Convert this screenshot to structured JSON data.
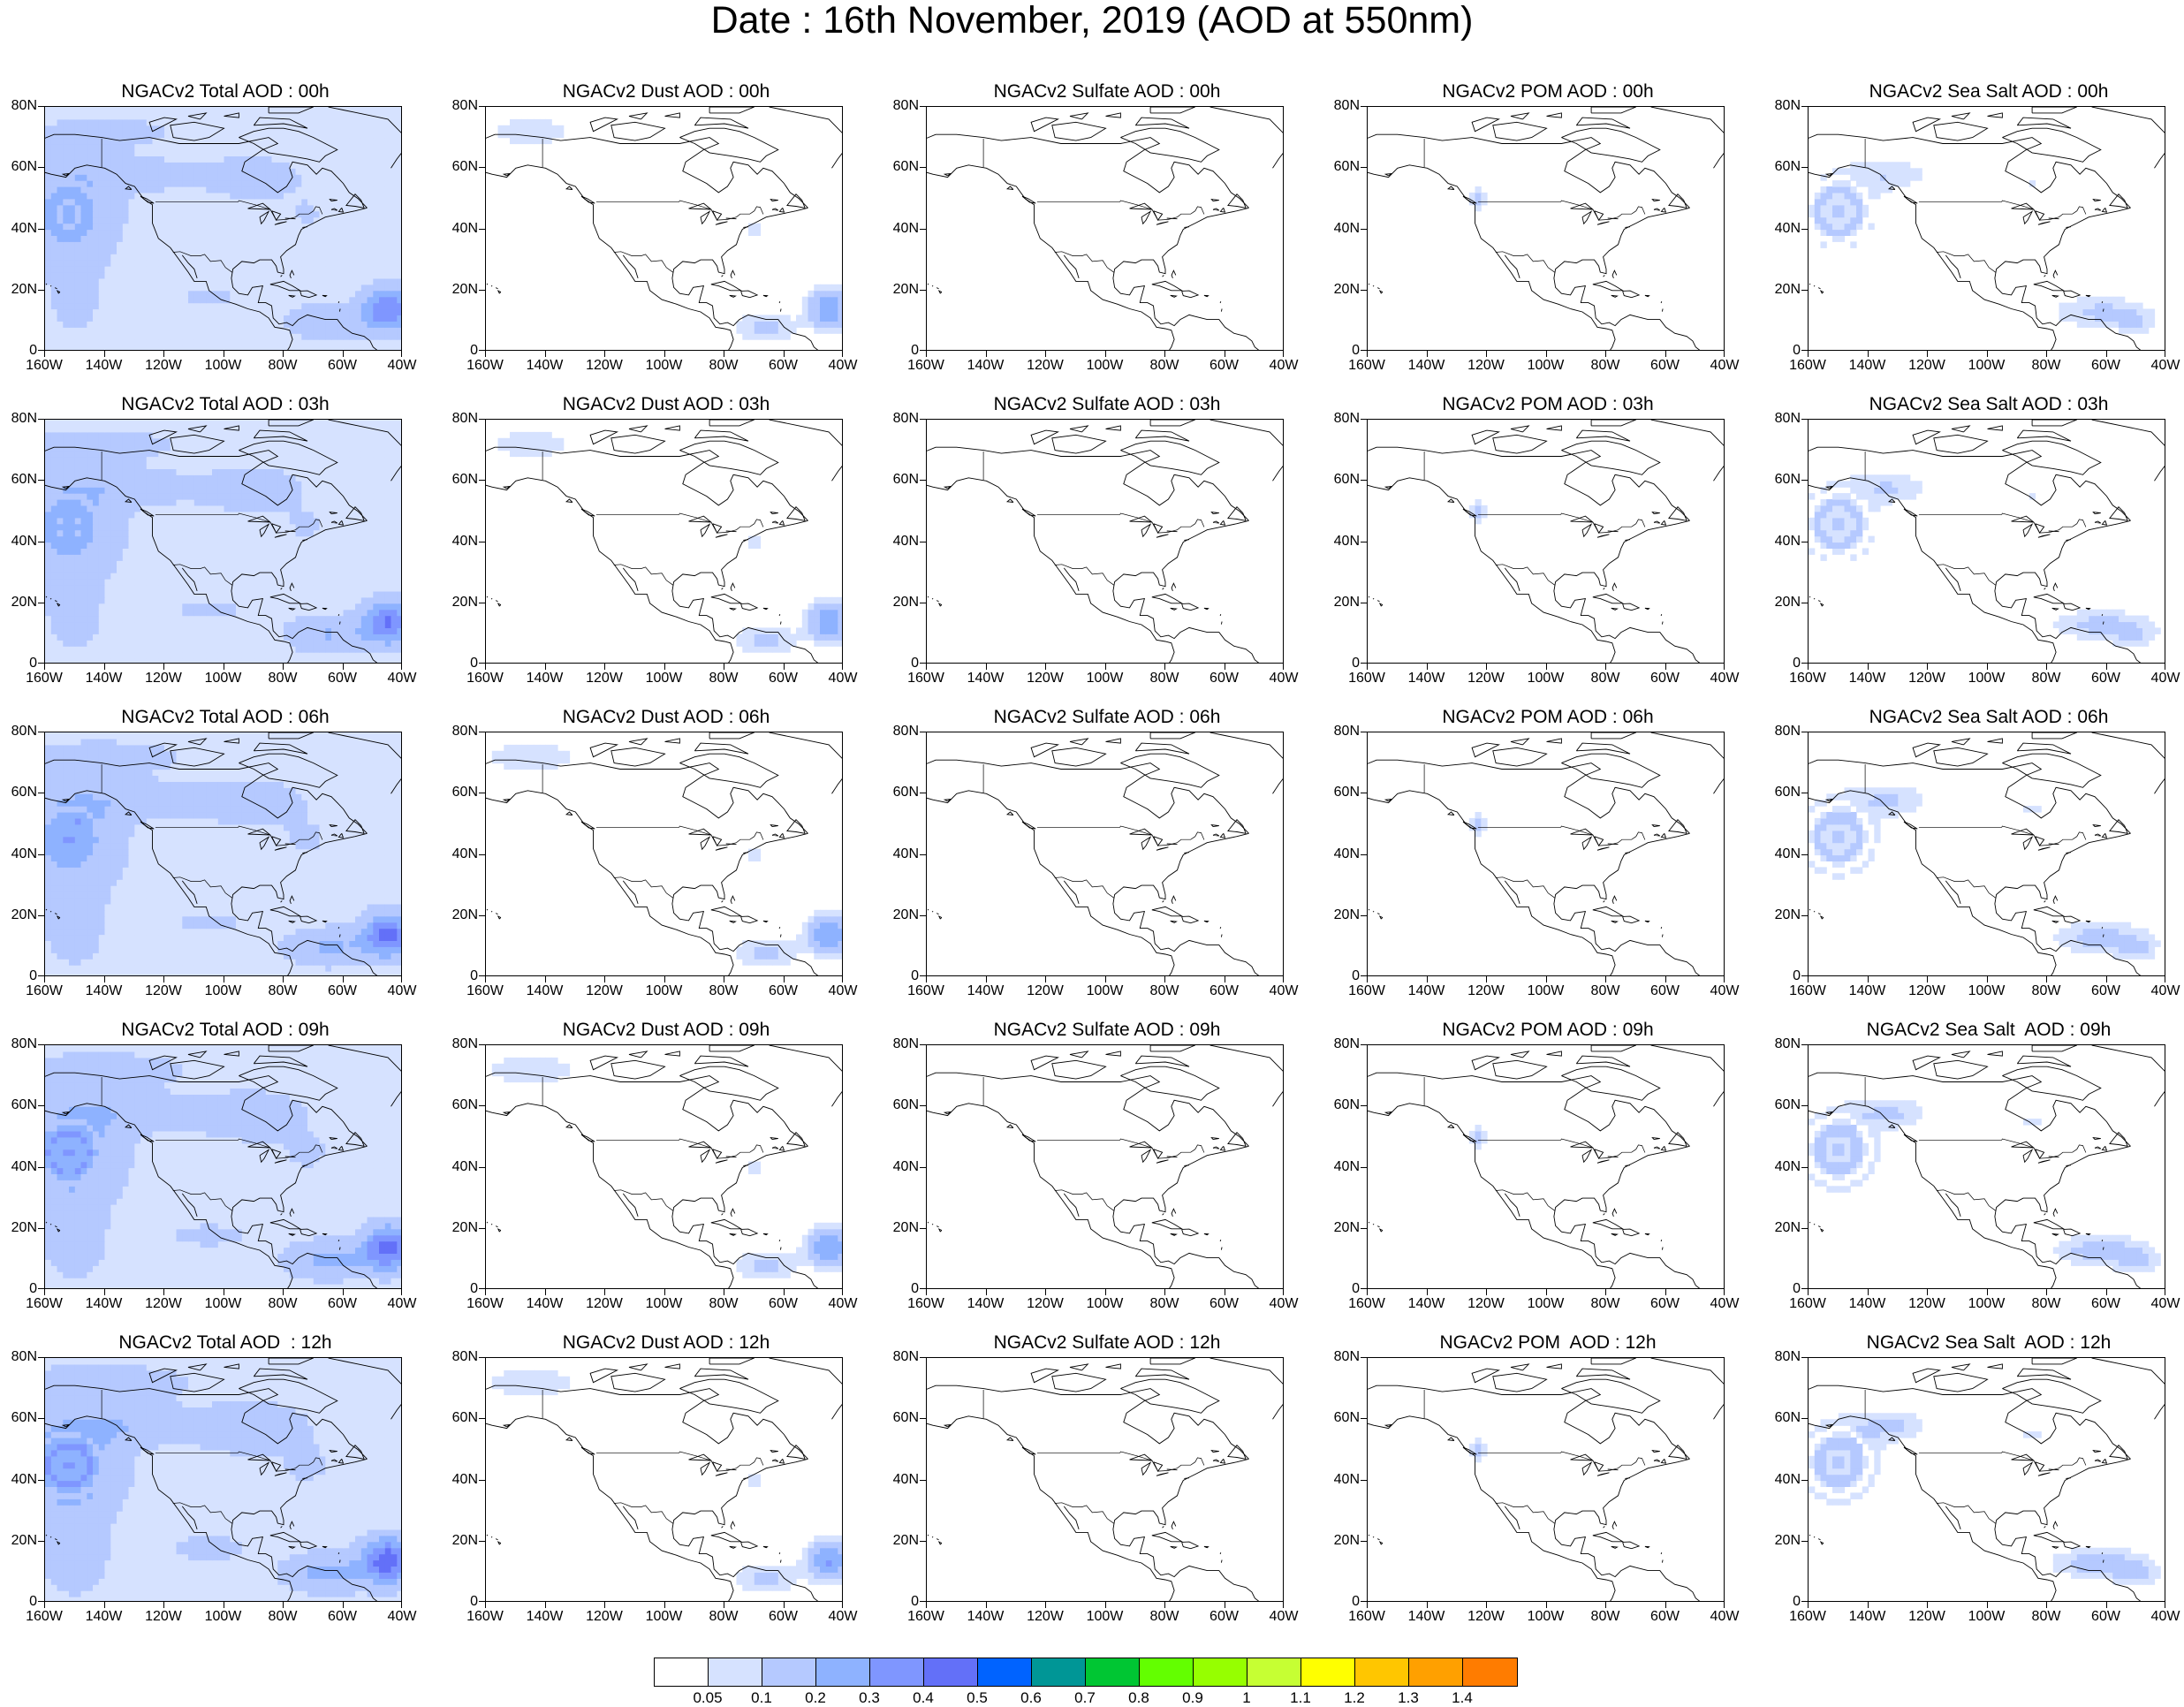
{
  "title": "Date : 16th November, 2019 (AOD at 550nm)",
  "lat_labels": [
    "80N",
    "60N",
    "40N",
    "20N",
    "0"
  ],
  "lon_labels": [
    "160W",
    "140W",
    "120W",
    "100W",
    "80W",
    "60W",
    "40W"
  ],
  "panels": [
    [
      {
        "title": "NGACv2 Total AOD : 00h",
        "field": "total",
        "intensity": 1.0
      },
      {
        "title": "NGACv2 Dust AOD : 00h",
        "field": "dust",
        "intensity": 1.0
      },
      {
        "title": "NGACv2 Sulfate AOD : 00h",
        "field": "sulfate",
        "intensity": 1.0
      },
      {
        "title": "NGACv2 POM AOD : 00h",
        "field": "pom",
        "intensity": 1.0
      },
      {
        "title": "NGACv2 Sea Salt AOD : 00h",
        "field": "seasalt",
        "intensity": 1.0
      }
    ],
    [
      {
        "title": "NGACv2 Total AOD : 03h",
        "field": "total",
        "intensity": 1.05
      },
      {
        "title": "NGACv2 Dust AOD : 03h",
        "field": "dust",
        "intensity": 1.0
      },
      {
        "title": "NGACv2 Sulfate AOD : 03h",
        "field": "sulfate",
        "intensity": 1.0
      },
      {
        "title": "NGACv2 POM AOD : 03h",
        "field": "pom",
        "intensity": 1.0
      },
      {
        "title": "NGACv2 Sea Salt AOD : 03h",
        "field": "seasalt",
        "intensity": 1.05
      }
    ],
    [
      {
        "title": "NGACv2 Total AOD : 06h",
        "field": "total",
        "intensity": 1.1
      },
      {
        "title": "NGACv2 Dust AOD : 06h",
        "field": "dust",
        "intensity": 1.05
      },
      {
        "title": "NGACv2 Sulfate AOD : 06h",
        "field": "sulfate",
        "intensity": 1.0
      },
      {
        "title": "NGACv2 POM AOD : 06h",
        "field": "pom",
        "intensity": 1.1
      },
      {
        "title": "NGACv2 Sea Salt AOD : 06h",
        "field": "seasalt",
        "intensity": 1.1
      }
    ],
    [
      {
        "title": "NGACv2 Total AOD : 09h",
        "field": "total",
        "intensity": 1.15
      },
      {
        "title": "NGACv2 Dust AOD : 09h",
        "field": "dust",
        "intensity": 1.05
      },
      {
        "title": "NGACv2 Sulfate AOD : 09h",
        "field": "sulfate",
        "intensity": 1.0
      },
      {
        "title": "NGACv2 POM AOD : 09h",
        "field": "pom",
        "intensity": 1.1
      },
      {
        "title": "NGACv2 Sea Salt  AOD : 09h",
        "field": "seasalt",
        "intensity": 1.15
      }
    ],
    [
      {
        "title": "NGACv2 Total AOD  : 12h",
        "field": "total",
        "intensity": 1.2
      },
      {
        "title": "NGACv2 Dust AOD : 12h",
        "field": "dust",
        "intensity": 1.1
      },
      {
        "title": "NGACv2 Sulfate AOD : 12h",
        "field": "sulfate",
        "intensity": 1.0
      },
      {
        "title": "NGACv2 POM  AOD : 12h",
        "field": "pom",
        "intensity": 1.05
      },
      {
        "title": "NGACv2 Sea Salt  AOD : 12h",
        "field": "seasalt",
        "intensity": 1.2
      }
    ]
  ],
  "colorbar": {
    "colors": [
      "#ffffff",
      "#d6e2ff",
      "#b5c9ff",
      "#8eb2ff",
      "#7f96ff",
      "#6370f8",
      "#0063ff",
      "#009696",
      "#00c633",
      "#63ff00",
      "#96ff00",
      "#c6ff33",
      "#ffff00",
      "#ffc600",
      "#ffa000",
      "#ff7c00",
      "#ff1900"
    ],
    "labels": [
      "0.05",
      "0.1",
      "0.2",
      "0.3",
      "0.4",
      "0.5",
      "0.6",
      "0.7",
      "0.8",
      "0.9",
      "1",
      "1.1",
      "1.2",
      "1.3",
      "1.4"
    ]
  }
}
